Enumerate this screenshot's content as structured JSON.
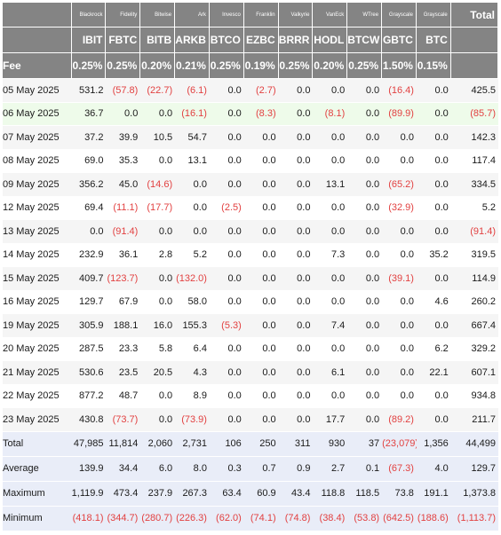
{
  "header": {
    "fee_label": "Fee",
    "total_label": "Total",
    "funds": [
      {
        "issuer": "Blackrock",
        "ticker": "IBIT",
        "fee": "0.25%"
      },
      {
        "issuer": "Fidelity",
        "ticker": "FBTC",
        "fee": "0.25%"
      },
      {
        "issuer": "Bitwise",
        "ticker": "BITB",
        "fee": "0.20%"
      },
      {
        "issuer": "Ark",
        "ticker": "ARKB",
        "fee": "0.21%"
      },
      {
        "issuer": "Invesco",
        "ticker": "BTCO",
        "fee": "0.25%"
      },
      {
        "issuer": "Franklin",
        "ticker": "EZBC",
        "fee": "0.19%"
      },
      {
        "issuer": "Valkyrie",
        "ticker": "BRRR",
        "fee": "0.25%"
      },
      {
        "issuer": "VanEck",
        "ticker": "HODL",
        "fee": "0.20%"
      },
      {
        "issuer": "WTree",
        "ticker": "BTCW",
        "fee": "0.25%"
      },
      {
        "issuer": "Grayscale",
        "ticker": "GBTC",
        "fee": "1.50%"
      },
      {
        "issuer": "Grayscale",
        "ticker": "BTC",
        "fee": "0.15%"
      }
    ]
  },
  "rows": [
    {
      "date": "05 May 2025",
      "values": [
        "531.2",
        "(57.8)",
        "(22.7)",
        "(6.1)",
        "0.0",
        "(2.7)",
        "0.0",
        "0.0",
        "0.0",
        "(16.4)",
        "0.0",
        "425.5"
      ]
    },
    {
      "date": "06 May 2025",
      "values": [
        "36.7",
        "0.0",
        "0.0",
        "(16.1)",
        "0.0",
        "(8.3)",
        "0.0",
        "(8.1)",
        "0.0",
        "(89.9)",
        "0.0",
        "(85.7)"
      ]
    },
    {
      "date": "07 May 2025",
      "values": [
        "37.2",
        "39.9",
        "10.5",
        "54.7",
        "0.0",
        "0.0",
        "0.0",
        "0.0",
        "0.0",
        "0.0",
        "0.0",
        "142.3"
      ]
    },
    {
      "date": "08 May 2025",
      "values": [
        "69.0",
        "35.3",
        "0.0",
        "13.1",
        "0.0",
        "0.0",
        "0.0",
        "0.0",
        "0.0",
        "0.0",
        "0.0",
        "117.4"
      ]
    },
    {
      "date": "09 May 2025",
      "values": [
        "356.2",
        "45.0",
        "(14.6)",
        "0.0",
        "0.0",
        "0.0",
        "0.0",
        "13.1",
        "0.0",
        "(65.2)",
        "0.0",
        "334.5"
      ]
    },
    {
      "date": "12 May 2025",
      "values": [
        "69.4",
        "(11.1)",
        "(17.7)",
        "0.0",
        "(2.5)",
        "0.0",
        "0.0",
        "0.0",
        "0.0",
        "(32.9)",
        "0.0",
        "5.2"
      ]
    },
    {
      "date": "13 May 2025",
      "values": [
        "0.0",
        "(91.4)",
        "0.0",
        "0.0",
        "0.0",
        "0.0",
        "0.0",
        "0.0",
        "0.0",
        "0.0",
        "0.0",
        "(91.4)"
      ]
    },
    {
      "date": "14 May 2025",
      "values": [
        "232.9",
        "36.1",
        "2.8",
        "5.2",
        "0.0",
        "0.0",
        "0.0",
        "7.3",
        "0.0",
        "0.0",
        "35.2",
        "319.5"
      ]
    },
    {
      "date": "15 May 2025",
      "values": [
        "409.7",
        "(123.7)",
        "0.0",
        "(132.0)",
        "0.0",
        "0.0",
        "0.0",
        "0.0",
        "0.0",
        "(39.1)",
        "0.0",
        "114.9"
      ]
    },
    {
      "date": "16 May 2025",
      "values": [
        "129.7",
        "67.9",
        "0.0",
        "58.0",
        "0.0",
        "0.0",
        "0.0",
        "0.0",
        "0.0",
        "0.0",
        "4.6",
        "260.2"
      ]
    },
    {
      "date": "19 May 2025",
      "values": [
        "305.9",
        "188.1",
        "16.0",
        "155.3",
        "(5.3)",
        "0.0",
        "0.0",
        "7.4",
        "0.0",
        "0.0",
        "0.0",
        "667.4"
      ]
    },
    {
      "date": "20 May 2025",
      "values": [
        "287.5",
        "23.3",
        "5.8",
        "6.4",
        "0.0",
        "0.0",
        "0.0",
        "0.0",
        "0.0",
        "0.0",
        "6.2",
        "329.2"
      ]
    },
    {
      "date": "21 May 2025",
      "values": [
        "530.6",
        "23.5",
        "20.5",
        "4.3",
        "0.0",
        "0.0",
        "0.0",
        "6.1",
        "0.0",
        "0.0",
        "22.1",
        "607.1"
      ]
    },
    {
      "date": "22 May 2025",
      "values": [
        "877.2",
        "48.7",
        "0.0",
        "8.9",
        "0.0",
        "0.0",
        "0.0",
        "0.0",
        "0.0",
        "0.0",
        "0.0",
        "934.8"
      ]
    },
    {
      "date": "23 May 2025",
      "values": [
        "430.8",
        "(73.7)",
        "0.0",
        "(73.9)",
        "0.0",
        "0.0",
        "0.0",
        "17.7",
        "0.0",
        "(89.2)",
        "0.0",
        "211.7"
      ]
    }
  ],
  "summary": [
    {
      "label": "Total",
      "values": [
        "47,985",
        "11,814",
        "2,060",
        "2,731",
        "106",
        "250",
        "311",
        "930",
        "37",
        "(23,079)",
        "1,356",
        "44,499"
      ]
    },
    {
      "label": "Average",
      "values": [
        "139.9",
        "34.4",
        "6.0",
        "8.0",
        "0.3",
        "0.7",
        "0.9",
        "2.7",
        "0.1",
        "(67.3)",
        "4.0",
        "129.7"
      ]
    },
    {
      "label": "Maximum",
      "values": [
        "1,119.9",
        "473.4",
        "237.9",
        "267.3",
        "63.4",
        "60.9",
        "43.4",
        "118.8",
        "118.5",
        "73.8",
        "191.1",
        "1,373.8"
      ]
    },
    {
      "label": "Minimum",
      "values": [
        "(418.1)",
        "(344.7)",
        "(280.7)",
        "(226.3)",
        "(62.0)",
        "(74.1)",
        "(74.8)",
        "(38.4)",
        "(53.8)",
        "(642.5)",
        "(188.6)",
        "(1,113.7)"
      ]
    }
  ],
  "highlight_row": 1,
  "colors": {
    "header_bg": "#848484",
    "negative": "#e24141",
    "highlight_row_bg": "#eefbea",
    "summary_bg": "#e9edf8",
    "stripe_bg": "#f5f5f5"
  }
}
